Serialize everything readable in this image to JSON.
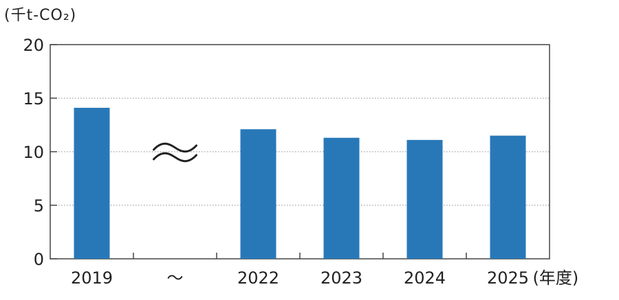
{
  "chart_data": {
    "type": "bar",
    "y_unit_label": "(千t-CO₂)",
    "x_unit_label": "(年度)",
    "categories": [
      "2019",
      "～",
      "2022",
      "2023",
      "2024",
      "2025"
    ],
    "values": [
      14.1,
      null,
      12.1,
      11.3,
      11.1,
      11.5
    ],
    "break_symbol": "≈",
    "ylim": [
      0,
      20
    ],
    "yticks": [
      "0",
      "5",
      "10",
      "15",
      "20"
    ],
    "grid": true,
    "bar_color": "#2878b8"
  }
}
